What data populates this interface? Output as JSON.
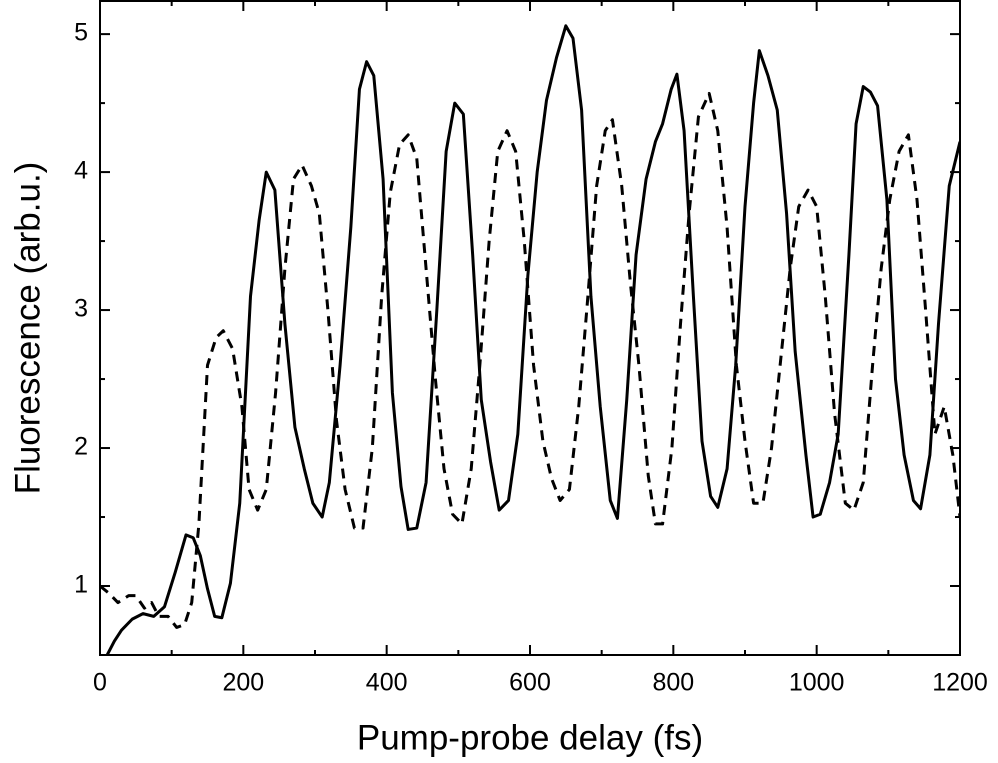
{
  "chart_data": {
    "type": "line",
    "xlabel": "Pump-probe delay (fs)",
    "ylabel": "Fluorescence (arb.u.)",
    "xlim": [
      0,
      1200
    ],
    "ylim": [
      0.5,
      5.24
    ],
    "xticks": [
      0,
      200,
      400,
      600,
      800,
      1000,
      1200
    ],
    "yticks": [
      1,
      2,
      3,
      4,
      5
    ],
    "xminorticks": [
      100,
      300,
      500,
      700,
      900,
      1100
    ],
    "yminorticks": [
      1.5,
      2.5,
      3.5,
      4.5
    ],
    "grid": false,
    "series": [
      {
        "color": "#000000",
        "style": "solid",
        "x": [
          10,
          20,
          30,
          45,
          60,
          75,
          90,
          105,
          120,
          130,
          140,
          150,
          160,
          170,
          182,
          195,
          210,
          222,
          232,
          244,
          258,
          272,
          285,
          297,
          310,
          320,
          335,
          350,
          362,
          372,
          382,
          395,
          408,
          420,
          430,
          442,
          455,
          470,
          483,
          495,
          507,
          520,
          532,
          545,
          557,
          570,
          583,
          597,
          610,
          623,
          637,
          650,
          660,
          672,
          685,
          698,
          712,
          722,
          735,
          748,
          762,
          775,
          785,
          797,
          805,
          815,
          828,
          840,
          852,
          862,
          875,
          887,
          900,
          912,
          920,
          932,
          945,
          958,
          970,
          985,
          995,
          1005,
          1018,
          1030,
          1045,
          1055,
          1065,
          1075,
          1085,
          1098,
          1110,
          1122,
          1135,
          1145,
          1158,
          1170,
          1185,
          1200
        ],
        "values": [
          0.5,
          0.6,
          0.68,
          0.76,
          0.8,
          0.78,
          0.85,
          1.1,
          1.37,
          1.35,
          1.22,
          0.98,
          0.78,
          0.77,
          1.02,
          1.6,
          3.1,
          3.65,
          4.0,
          3.87,
          2.9,
          2.15,
          1.85,
          1.6,
          1.5,
          1.75,
          2.6,
          3.6,
          4.6,
          4.8,
          4.7,
          3.95,
          2.4,
          1.72,
          1.41,
          1.42,
          1.75,
          3.0,
          4.15,
          4.5,
          4.42,
          3.4,
          2.35,
          1.9,
          1.55,
          1.62,
          2.1,
          3.25,
          4.0,
          4.52,
          4.83,
          5.06,
          4.97,
          4.45,
          3.1,
          2.3,
          1.62,
          1.49,
          2.35,
          3.4,
          3.95,
          4.22,
          4.35,
          4.6,
          4.71,
          4.3,
          3.1,
          2.05,
          1.65,
          1.57,
          1.85,
          2.6,
          3.75,
          4.5,
          4.88,
          4.7,
          4.45,
          3.7,
          2.7,
          1.95,
          1.5,
          1.52,
          1.75,
          2.1,
          3.4,
          4.35,
          4.62,
          4.58,
          4.48,
          3.8,
          2.5,
          1.95,
          1.62,
          1.56,
          1.95,
          2.9,
          3.9,
          4.22
        ]
      },
      {
        "color": "#000000",
        "style": "dashed",
        "x": [
          0,
          12,
          25,
          40,
          50,
          62,
          72,
          82,
          95,
          107,
          118,
          128,
          138,
          150,
          162,
          172,
          185,
          198,
          208,
          220,
          232,
          245,
          258,
          270,
          282,
          295,
          306,
          318,
          330,
          342,
          355,
          367,
          380,
          393,
          405,
          418,
          430,
          442,
          455,
          468,
          480,
          492,
          505,
          518,
          530,
          543,
          555,
          568,
          580,
          592,
          605,
          618,
          630,
          642,
          655,
          668,
          680,
          693,
          705,
          715,
          728,
          740,
          752,
          765,
          775,
          785,
          798,
          810,
          822,
          835,
          850,
          862,
          875,
          888,
          900,
          912,
          925,
          937,
          950,
          963,
          975,
          988,
          1000,
          1012,
          1025,
          1040,
          1052,
          1065,
          1078,
          1090,
          1102,
          1115,
          1128,
          1140,
          1152,
          1165,
          1178,
          1190,
          1200
        ],
        "values": [
          1.0,
          0.95,
          0.88,
          0.93,
          0.93,
          0.84,
          0.88,
          0.78,
          0.78,
          0.7,
          0.72,
          0.88,
          1.45,
          2.6,
          2.8,
          2.85,
          2.72,
          2.3,
          1.7,
          1.55,
          1.7,
          2.4,
          3.3,
          3.95,
          4.05,
          3.9,
          3.7,
          3.0,
          2.2,
          1.7,
          1.42,
          1.42,
          2.0,
          3.1,
          3.85,
          4.2,
          4.27,
          4.1,
          3.3,
          2.5,
          1.85,
          1.52,
          1.45,
          1.85,
          2.6,
          3.5,
          4.15,
          4.3,
          4.15,
          3.5,
          2.6,
          2.05,
          1.78,
          1.62,
          1.7,
          2.3,
          3.05,
          3.9,
          4.3,
          4.38,
          3.9,
          3.2,
          2.6,
          1.8,
          1.45,
          1.45,
          2.0,
          2.9,
          3.7,
          4.4,
          4.57,
          4.3,
          3.6,
          2.6,
          2.05,
          1.6,
          1.6,
          2.0,
          2.65,
          3.3,
          3.75,
          3.87,
          3.75,
          3.1,
          2.25,
          1.6,
          1.55,
          1.75,
          2.6,
          3.3,
          3.8,
          4.15,
          4.27,
          3.8,
          3.0,
          2.1,
          2.3,
          1.95,
          1.5
        ]
      }
    ]
  }
}
